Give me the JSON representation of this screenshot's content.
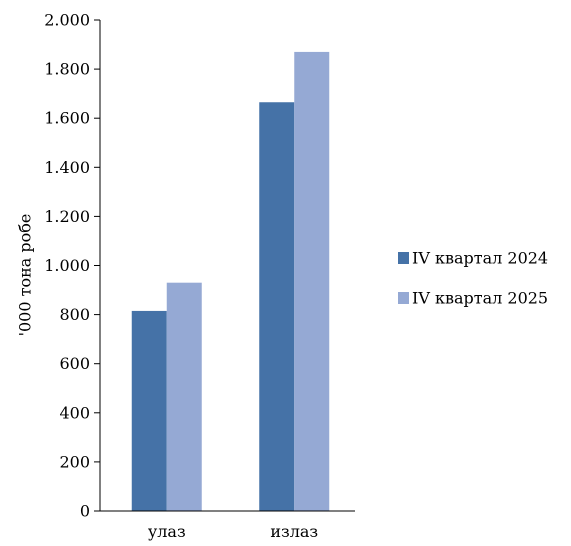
{
  "chart_data": {
    "type": "bar",
    "title": "",
    "xlabel": "",
    "ylabel": "'000 тона робе",
    "categories": [
      "улаз",
      "излаз"
    ],
    "series": [
      {
        "name": "IV квартал 2024",
        "values": [
          815,
          1665
        ],
        "color": "#4572A7"
      },
      {
        "name": "IV квартал 2025",
        "values": [
          930,
          1870
        ],
        "color": "#95A9D4"
      }
    ],
    "ylim": [
      0,
      2000
    ],
    "yticks": [
      0,
      200,
      400,
      600,
      800,
      1000,
      1200,
      1400,
      1600,
      1800,
      2000
    ],
    "ytick_labels": [
      "0",
      "200",
      "400",
      "600",
      "800",
      "1.000",
      "1.200",
      "1.400",
      "1.600",
      "1.800",
      "2.000"
    ],
    "grid": false,
    "legend_position": "right"
  }
}
